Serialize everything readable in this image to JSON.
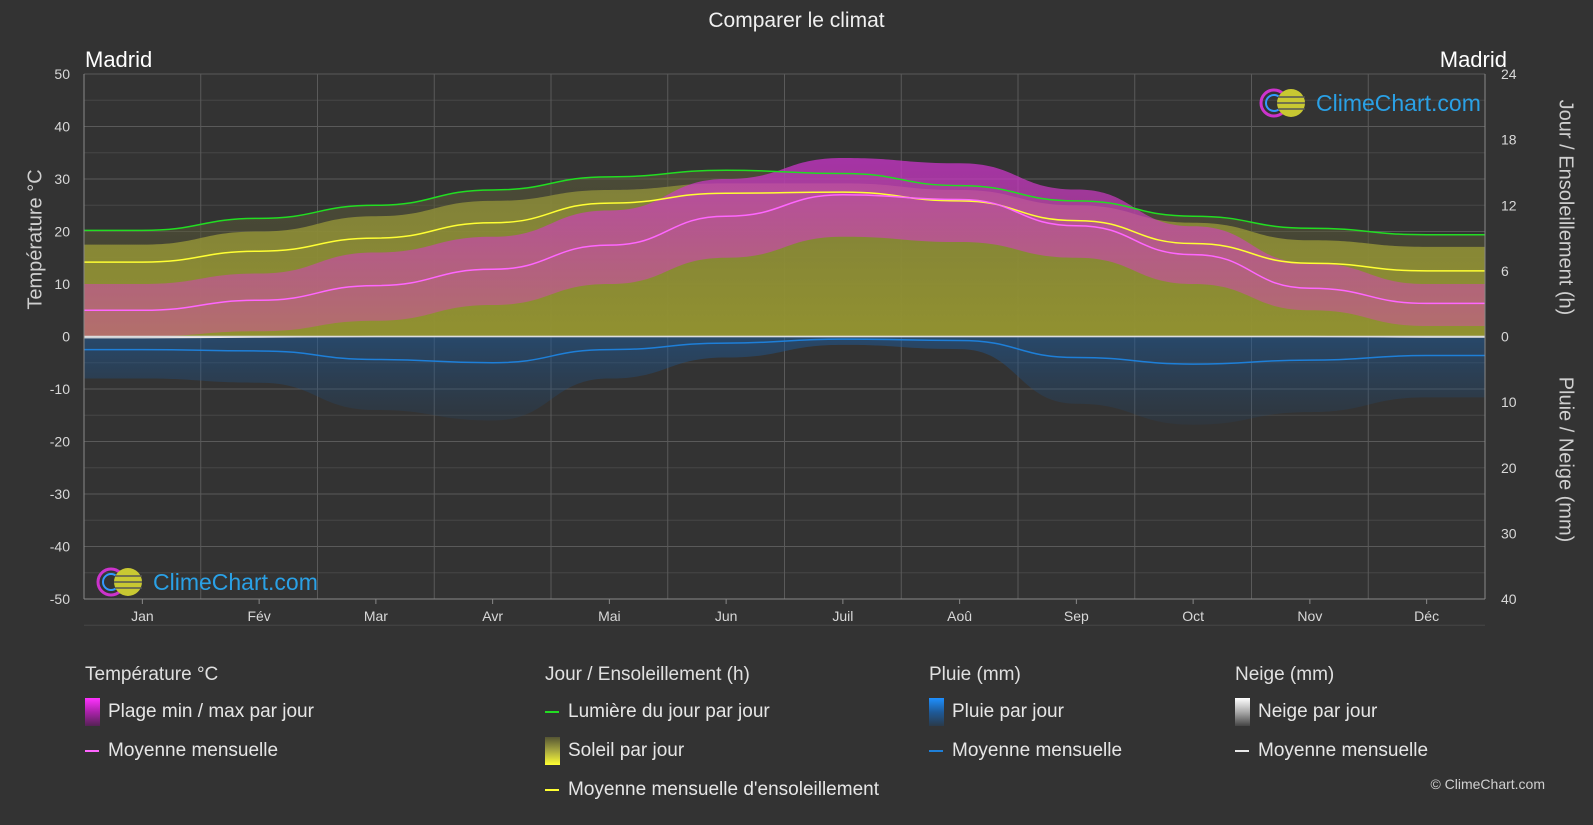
{
  "title": "Comparer le climat",
  "city_left": "Madrid",
  "city_right": "Madrid",
  "axes": {
    "left_label": "Température °C",
    "right_top_label": "Jour / Ensoleillement (h)",
    "right_bottom_label": "Pluie / Neige (mm)"
  },
  "chart_data": {
    "type": "area",
    "categories": [
      "Jan",
      "Fév",
      "Mar",
      "Avr",
      "Mai",
      "Jun",
      "Juil",
      "Aoû",
      "Sep",
      "Oct",
      "Nov",
      "Déc"
    ],
    "temperature_axis": {
      "range": [
        -50,
        50
      ],
      "ticks": [
        50,
        40,
        30,
        20,
        10,
        0,
        -10,
        -20,
        -30,
        -40,
        -50
      ],
      "unit": "°C"
    },
    "daylight_axis": {
      "range": [
        0,
        24
      ],
      "ticks": [
        24,
        18,
        12,
        6,
        0
      ],
      "unit": "h"
    },
    "precipitation_axis": {
      "range": [
        0,
        40
      ],
      "ticks": [
        0,
        10,
        20,
        30,
        40
      ],
      "unit": "mm",
      "inverted": true
    },
    "series": [
      {
        "name": "Lumière du jour par jour",
        "axis": "daylight",
        "color": "#22dd22",
        "values": [
          9.7,
          10.8,
          12.0,
          13.4,
          14.6,
          15.2,
          14.9,
          13.8,
          12.4,
          11.0,
          9.9,
          9.3
        ]
      },
      {
        "name": "Soleil par jour",
        "axis": "daylight",
        "color": "#c8c832",
        "values": [
          8.4,
          9.6,
          11.0,
          12.4,
          13.4,
          14.0,
          14.0,
          13.4,
          12.0,
          10.4,
          8.8,
          8.2
        ]
      },
      {
        "name": "Moyenne mensuelle d'ensoleillement",
        "axis": "daylight",
        "color": "#ffff33",
        "values": [
          6.8,
          7.8,
          9.0,
          10.4,
          12.2,
          13.1,
          13.2,
          12.4,
          10.6,
          8.5,
          6.7,
          6.0
        ]
      },
      {
        "name": "Plage min / max par jour (max)",
        "axis": "temperature",
        "color": "#e040e0",
        "values": [
          10,
          12,
          16,
          19,
          24,
          30,
          34,
          33,
          28,
          21,
          14,
          10
        ]
      },
      {
        "name": "Plage min / max par jour (min)",
        "axis": "temperature",
        "color": "#e040e0",
        "values": [
          0,
          1,
          3,
          6,
          10,
          15,
          19,
          18,
          15,
          10,
          5,
          2
        ]
      },
      {
        "name": "Moyenne mensuelle (température)",
        "axis": "temperature",
        "color": "#ff66ff",
        "values": [
          5.0,
          6.9,
          9.7,
          12.8,
          17.4,
          22.9,
          27.0,
          26.1,
          21.1,
          15.6,
          9.2,
          6.3
        ]
      },
      {
        "name": "Moyenne mensuelle (pluie)",
        "axis": "precipitation",
        "color": "#1e7fd8",
        "values": [
          2.0,
          2.2,
          3.5,
          4.0,
          2.0,
          1.0,
          0.4,
          0.6,
          3.2,
          4.2,
          3.6,
          2.9
        ]
      },
      {
        "name": "Moyenne mensuelle (neige)",
        "axis": "precipitation",
        "color": "#e8e8e8",
        "values": [
          0.2,
          0.1,
          0.0,
          0.0,
          0.0,
          0.0,
          0.0,
          0.0,
          0.0,
          0.0,
          0.0,
          0.1
        ]
      }
    ]
  },
  "legend": {
    "temperature": {
      "title": "Température °C",
      "items": [
        "Plage min / max par jour",
        "Moyenne mensuelle"
      ]
    },
    "sunshine": {
      "title": "Jour / Ensoleillement (h)",
      "items": [
        "Lumière du jour par jour",
        "Soleil par jour",
        "Moyenne mensuelle d'ensoleillement"
      ]
    },
    "rain": {
      "title": "Pluie (mm)",
      "items": [
        "Pluie par jour",
        "Moyenne mensuelle"
      ]
    },
    "snow": {
      "title": "Neige (mm)",
      "items": [
        "Neige par jour",
        "Moyenne mensuelle"
      ]
    }
  },
  "colors": {
    "background": "#333333",
    "temp_range": "#e040e0",
    "temp_mean": "#ff66ff",
    "daylight": "#22dd22",
    "sunshine": "#c8c832",
    "sunshine_mean": "#ffff33",
    "rain": "#1e7fd8",
    "snow": "#e8e8e8"
  },
  "logo_text": "ClimeChart.com",
  "copyright": "© ClimeChart.com"
}
